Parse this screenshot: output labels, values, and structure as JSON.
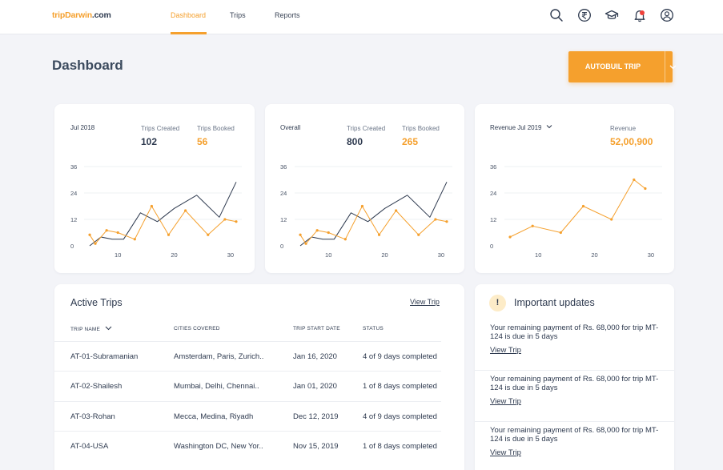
{
  "header": {
    "logo_main": "tripDarwin",
    "logo_domain": ".com",
    "nav": [
      {
        "label": "Dashboard",
        "active": true
      },
      {
        "label": "Trips",
        "active": false
      },
      {
        "label": "Reports",
        "active": false
      }
    ],
    "icons": [
      "search-icon",
      "rupee-icon",
      "graduation-cap-icon",
      "bell-icon",
      "user-icon"
    ],
    "notification_count": "1"
  },
  "page": {
    "title": "Dashboard",
    "autobuild_label": "AUTOBUIL TRIP"
  },
  "colors": {
    "accent": "#f5a02d",
    "text": "#2e3a4f",
    "background": "#f3f4f8"
  },
  "cards": [
    {
      "period": "Jul 2018",
      "stat1_label": "Trips Created",
      "stat1_value": "102",
      "stat2_label": "Trips Booked",
      "stat2_value": "56"
    },
    {
      "period": "Overall",
      "stat1_label": "Trips Created",
      "stat1_value": "800",
      "stat2_label": "Trips Booked",
      "stat2_value": "265"
    },
    {
      "period": "Revenue Jul 2019",
      "stat1_label": "Revenue",
      "stat1_value": "52,00,900"
    }
  ],
  "chart_data": [
    {
      "type": "line",
      "y_ticks": [
        "0",
        "12",
        "24",
        "36"
      ],
      "x_ticks": [
        "10",
        "20",
        "30"
      ],
      "ylim": [
        0,
        36
      ],
      "xlim": [
        4,
        32
      ],
      "series": [
        {
          "color": "#2e3a4f",
          "x": [
            5,
            7,
            9,
            11,
            14,
            17,
            20,
            24,
            28,
            31
          ],
          "y": [
            0,
            4,
            3,
            3,
            15,
            11,
            17,
            23,
            13,
            29
          ]
        },
        {
          "color": "#f5a02d",
          "x": [
            5,
            6,
            8,
            10,
            13,
            16,
            19,
            22,
            26,
            29,
            31
          ],
          "y": [
            5,
            1,
            7,
            6,
            3,
            18,
            5,
            16,
            5,
            12,
            11
          ]
        }
      ]
    },
    {
      "type": "line",
      "y_ticks": [
        "0",
        "12",
        "24",
        "36"
      ],
      "x_ticks": [
        "10",
        "20",
        "30"
      ],
      "ylim": [
        0,
        36
      ],
      "xlim": [
        4,
        32
      ],
      "series": [
        {
          "color": "#2e3a4f",
          "x": [
            5,
            7,
            9,
            11,
            14,
            17,
            20,
            24,
            28,
            31
          ],
          "y": [
            0,
            4,
            3,
            3,
            15,
            11,
            17,
            23,
            13,
            29
          ]
        },
        {
          "color": "#f5a02d",
          "x": [
            5,
            6,
            8,
            10,
            13,
            16,
            19,
            22,
            26,
            29,
            31
          ],
          "y": [
            5,
            1,
            7,
            6,
            3,
            18,
            5,
            16,
            5,
            12,
            11
          ]
        }
      ]
    },
    {
      "type": "line",
      "y_ticks": [
        "0",
        "12",
        "24",
        "36"
      ],
      "x_ticks": [
        "10",
        "20",
        "30"
      ],
      "ylim": [
        0,
        36
      ],
      "xlim": [
        4,
        32
      ],
      "series": [
        {
          "color": "#f5a02d",
          "x": [
            5,
            9,
            14,
            18,
            23,
            27,
            29
          ],
          "y": [
            4,
            9,
            6,
            18,
            12,
            30,
            26
          ]
        }
      ]
    }
  ],
  "active_trips": {
    "title": "Active Trips",
    "view_link": "View Trip",
    "columns": [
      "TRIP NAME",
      "CITIES COVERED",
      "TRIP START DATE",
      "STATUS"
    ],
    "rows": [
      {
        "name": "AT-01-Subramanian",
        "cities": "Amsterdam, Paris, Zurich..",
        "date": "Jan 16, 2020",
        "status": "4 of 9 days completed"
      },
      {
        "name": "AT-02-Shailesh",
        "cities": "Mumbai, Delhi, Chennai..",
        "date": "Jan 01, 2020",
        "status": "1 of 8 days completed"
      },
      {
        "name": "AT-03-Rohan",
        "cities": "Mecca, Medina, Riyadh",
        "date": "Dec 12, 2019",
        "status": "4 of 9 days completed"
      },
      {
        "name": "AT-04-USA",
        "cities": "Washington DC, New Yor..",
        "date": "Nov 15, 2019",
        "status": "1 of 8 days completed"
      }
    ]
  },
  "updates": {
    "icon_glyph": "!",
    "title": "Important updates",
    "items": [
      {
        "text": "Your remaining payment of Rs. 68,000 for trip MT-124 is due in 5 days",
        "link": "View Trip"
      },
      {
        "text": "Your remaining payment of Rs. 68,000 for trip MT-124 is due in 5 days",
        "link": "View Trip"
      },
      {
        "text": "Your remaining payment of Rs. 68,000 for trip MT-124 is due in 5 days",
        "link": "View Trip"
      }
    ]
  }
}
